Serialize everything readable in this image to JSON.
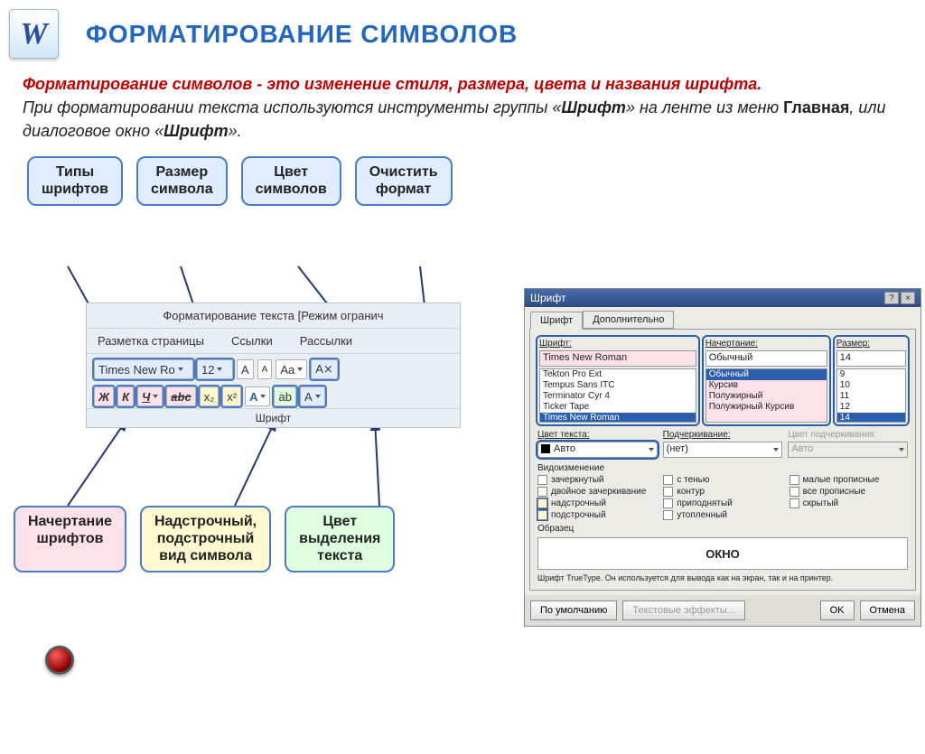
{
  "header": {
    "icon_letter": "W",
    "title": "ФОРМАТИРОВАНИЕ СИМВОЛОВ"
  },
  "intro": {
    "line1": "Форматирование символов - это изменение стиля, размера, цвета и названия шрифта.",
    "line2_a": "При форматировании текста используются инструменты группы «",
    "line2_em": "Шрифт",
    "line2_b": "» на ленте из меню ",
    "line2_bold": "Главная",
    "line2_c": ", или диалоговое окно «",
    "line2_em2": "Шрифт",
    "line2_d": "»."
  },
  "top_labels": {
    "types": "Типы\nшрифтов",
    "size": "Размер\nсимвола",
    "color": "Цвет\nсимволов",
    "clear": "Очистить\nформат"
  },
  "ribbon": {
    "top": "Форматирование текста [Режим огранич",
    "tabs": [
      "Разметка страницы",
      "Ссылки",
      "Рассылки"
    ],
    "font_name": "Times New Ro",
    "font_size": "12",
    "grow": "A",
    "shrink": "A",
    "case": "Aa",
    "clear": "A⨯",
    "row2": {
      "bold": "Ж",
      "italic": "К",
      "underline": "Ч",
      "strike": "abc",
      "sub": "x₂",
      "sup": "x²",
      "effects": "A",
      "highlight": "ab",
      "color": "A"
    },
    "group_name": "Шрифт"
  },
  "bottom_labels": {
    "style": "Начертание\nшрифтов",
    "subsup": "Надстрочный,\nподстрочный\nвид символа",
    "highlight": "Цвет\nвыделения\nтекста"
  },
  "dialog": {
    "title": "Шрифт",
    "tabs": [
      "Шрифт",
      "Дополнительно"
    ],
    "font_label": "Шрифт:",
    "font_value": "Times New Roman",
    "font_list": [
      "Tekton Pro Ext",
      "Tempus Sans ITC",
      "Terminator Cyr 4",
      "Ticker Tape",
      "Times New Roman"
    ],
    "style_label": "Начертание:",
    "style_value": "Обычный",
    "style_list": [
      "Обычный",
      "Курсив",
      "Полужирный",
      "Полужирный Курсив"
    ],
    "size_label": "Размер:",
    "size_value": "14",
    "size_list": [
      "9",
      "10",
      "11",
      "12",
      "14"
    ],
    "color_label": "Цвет текста:",
    "color_value": "Авто",
    "under_label": "Подчеркивание:",
    "under_value": "(нет)",
    "under_color_label": "Цвет подчеркивания:",
    "under_color_value": "Авто",
    "effects_label": "Видоизменение",
    "checks": [
      [
        "зачеркнутый",
        false
      ],
      [
        "с тенью",
        false
      ],
      [
        "малые прописные",
        false
      ],
      [
        "двойное зачеркивание",
        false
      ],
      [
        "контур",
        false
      ],
      [
        "все прописные",
        false
      ],
      [
        "надстрочный",
        true
      ],
      [
        "приподнятый",
        false
      ],
      [
        "скрытый",
        false
      ],
      [
        "подстрочный",
        true
      ],
      [
        "утопленный",
        false
      ]
    ],
    "sample_label": "Образец",
    "sample_text": "ОКНО",
    "hint": "Шрифт TrueType. Он используется для вывода как на экран, так и на принтер.",
    "btn_default": "По умолчанию",
    "btn_effects": "Текстовые эффекты...",
    "btn_ok": "OK",
    "btn_cancel": "Отмена"
  },
  "colors": {
    "accent_blue": "#2266c0",
    "border_blue": "#4a7bc8",
    "pink": "#fde1e8",
    "yellow": "#fff9d0",
    "light_blue": "#e0ecff",
    "red_text": "#c00000"
  }
}
